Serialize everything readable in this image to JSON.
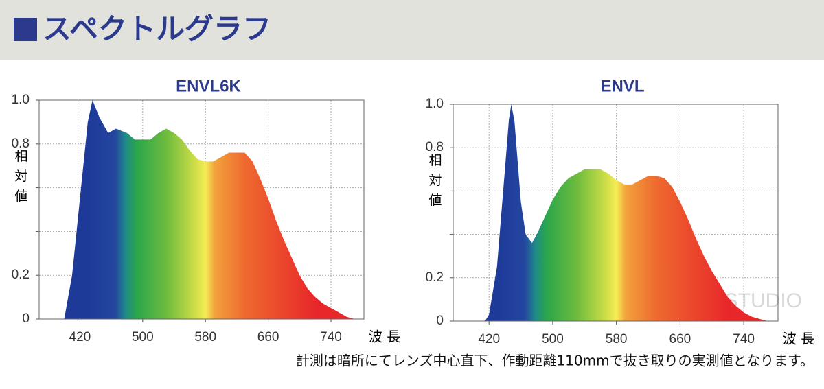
{
  "header": {
    "title": "スペクトルグラフ"
  },
  "chart_data": [
    {
      "type": "area",
      "title": "ENVL6K",
      "x_label": "波 長",
      "y_label": "相対値",
      "x": [
        400,
        410,
        420,
        430,
        436,
        445,
        456,
        466,
        480,
        490,
        500,
        510,
        520,
        530,
        540,
        550,
        560,
        570,
        580,
        590,
        600,
        610,
        620,
        630,
        640,
        650,
        660,
        670,
        680,
        690,
        700,
        710,
        720,
        730,
        740,
        750,
        760,
        770
      ],
      "values": [
        0,
        0.2,
        0.55,
        0.9,
        1.0,
        0.92,
        0.85,
        0.87,
        0.85,
        0.82,
        0.82,
        0.82,
        0.85,
        0.87,
        0.85,
        0.82,
        0.77,
        0.73,
        0.72,
        0.72,
        0.74,
        0.76,
        0.76,
        0.76,
        0.72,
        0.64,
        0.55,
        0.45,
        0.36,
        0.28,
        0.2,
        0.14,
        0.1,
        0.07,
        0.05,
        0.03,
        0.01,
        0
      ],
      "xlim": [
        368,
        782
      ],
      "xticks": [
        420,
        500,
        580,
        660,
        740
      ],
      "ylim": [
        0,
        1
      ],
      "yticks": [
        0,
        0.2,
        {
          "value": 0.4,
          "label": null
        },
        {
          "value": 0.6,
          "label": null
        },
        0.8,
        {
          "value": 1,
          "label": "1.0"
        }
      ],
      "grid": true
    },
    {
      "type": "area",
      "title": "ENVL",
      "x_label": "波 長",
      "y_label": "相対値",
      "x": [
        415,
        420,
        430,
        440,
        445,
        448,
        452,
        460,
        466,
        474,
        480,
        490,
        500,
        510,
        520,
        530,
        540,
        550,
        560,
        570,
        580,
        590,
        600,
        610,
        620,
        630,
        640,
        650,
        660,
        670,
        680,
        690,
        700,
        710,
        720,
        730,
        740,
        750,
        760,
        770
      ],
      "values": [
        0,
        0.03,
        0.25,
        0.7,
        0.93,
        1.0,
        0.92,
        0.55,
        0.4,
        0.36,
        0.4,
        0.48,
        0.56,
        0.62,
        0.66,
        0.68,
        0.7,
        0.7,
        0.7,
        0.68,
        0.65,
        0.63,
        0.63,
        0.65,
        0.67,
        0.67,
        0.66,
        0.62,
        0.55,
        0.47,
        0.38,
        0.3,
        0.23,
        0.17,
        0.11,
        0.07,
        0.04,
        0.02,
        0.01,
        0
      ],
      "xlim": [
        375,
        783
      ],
      "xticks": [
        420,
        500,
        580,
        660,
        740
      ],
      "ylim": [
        0,
        1
      ],
      "yticks": [
        0,
        0.2,
        {
          "value": 0.4,
          "label": null
        },
        {
          "value": 0.6,
          "label": null
        },
        0.8,
        {
          "value": 1,
          "label": "1.0"
        }
      ],
      "grid": true
    }
  ],
  "watermark": "LOUPE STUDIO",
  "footnote": "計測は暗所にてレンズ中心直下、作動距離110mmで抜き取りの実測値となります。"
}
